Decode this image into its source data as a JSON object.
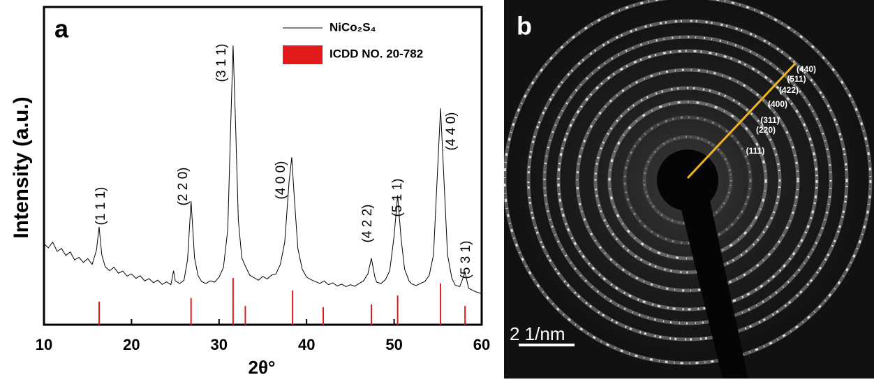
{
  "chart_data": {
    "type": "line",
    "panel_label": "a",
    "xlabel": "2θ°",
    "ylabel": "Intensity (a.u.)",
    "xlim": [
      10,
      60
    ],
    "xticks": [
      10,
      20,
      30,
      40,
      50,
      60
    ],
    "ylim": [
      0,
      100
    ],
    "series": [
      {
        "name": "NiCo₂S₄",
        "color": "#000000",
        "x": [
          10,
          10.5,
          11,
          11.5,
          12,
          12.5,
          13,
          13.5,
          14,
          14.5,
          15,
          15.5,
          16,
          16.3,
          16.6,
          17,
          17.5,
          18,
          18.5,
          19,
          19.5,
          20,
          20.5,
          21,
          21.5,
          22,
          22.5,
          23,
          23.5,
          24,
          24.5,
          24.8,
          25,
          25.5,
          26,
          26.4,
          26.8,
          27.2,
          27.6,
          28,
          28.5,
          29,
          29.5,
          30,
          30.5,
          31,
          31.3,
          31.6,
          31.9,
          32.2,
          32.6,
          33,
          33.5,
          34,
          34.5,
          35,
          35.5,
          36,
          36.5,
          37,
          37.5,
          38,
          38.3,
          38.6,
          39,
          39.5,
          40,
          40.5,
          41,
          41.5,
          42,
          42.5,
          43,
          43.5,
          44,
          44.5,
          45,
          45.5,
          46,
          46.5,
          47,
          47.4,
          47.8,
          48,
          48.5,
          49,
          49.5,
          50,
          50.4,
          50.8,
          51.2,
          51.7,
          52,
          52.5,
          53,
          53.5,
          54,
          54.5,
          54.9,
          55.3,
          55.7,
          56.1,
          56.6,
          57,
          57.5,
          58.1,
          58.5,
          59,
          59.5,
          60
        ],
        "values": [
          25.5,
          24.2,
          26.0,
          23.1,
          24.0,
          21.8,
          22.9,
          20.4,
          21.2,
          19.6,
          20.8,
          19.0,
          23.5,
          30.8,
          22.0,
          18.2,
          17.0,
          18.1,
          16.2,
          16.9,
          15.3,
          16.0,
          14.6,
          15.4,
          13.8,
          14.5,
          13.2,
          14.0,
          12.7,
          13.5,
          12.6,
          17.0,
          13.8,
          13.0,
          14.0,
          20.5,
          38.9,
          21.0,
          15.5,
          13.6,
          13.0,
          13.8,
          13.4,
          15.0,
          18.0,
          30.0,
          60.0,
          87.9,
          62.0,
          33.0,
          21.0,
          18.5,
          15.6,
          14.8,
          14.0,
          15.2,
          14.4,
          15.6,
          16.0,
          19.0,
          26.0,
          45.0,
          52.7,
          40.0,
          24.0,
          17.5,
          15.0,
          14.2,
          13.6,
          13.0,
          13.8,
          12.6,
          13.2,
          12.2,
          12.8,
          12.0,
          12.6,
          12.1,
          13.0,
          13.8,
          16.0,
          20.9,
          15.0,
          13.4,
          13.0,
          14.2,
          17.0,
          28.0,
          40.7,
          27.0,
          17.5,
          13.8,
          12.9,
          12.3,
          13.0,
          13.6,
          15.5,
          22.0,
          45.0,
          68.1,
          45.0,
          22.0,
          14.5,
          12.4,
          12.0,
          16.5,
          11.5,
          10.8,
          10.2,
          9.8
        ]
      },
      {
        "name": "ICDD NO. 20-782",
        "type": "bar",
        "color": "#e31a1c",
        "x": [
          16.3,
          26.8,
          31.6,
          33.0,
          38.4,
          41.9,
          47.4,
          50.4,
          55.3,
          58.1
        ],
        "values": [
          7.3,
          8.4,
          14.7,
          5.9,
          10.8,
          5.5,
          6.4,
          9.2,
          13.0,
          5.9
        ]
      }
    ],
    "peak_labels": [
      "(1 1 1)",
      "(2 2 0)",
      "(3 1 1)",
      "(4 0 0)",
      "(4 2 2)",
      "(5 1 1)",
      "(4 4 0)",
      "(5 3 1)"
    ]
  },
  "image": {
    "panel_label": "b",
    "ring_labels": [
      "(111)",
      "(220)",
      "(311)",
      "(400)",
      "(422)",
      "(511)",
      "(440)"
    ],
    "scale_bar": "2 1/nm"
  }
}
